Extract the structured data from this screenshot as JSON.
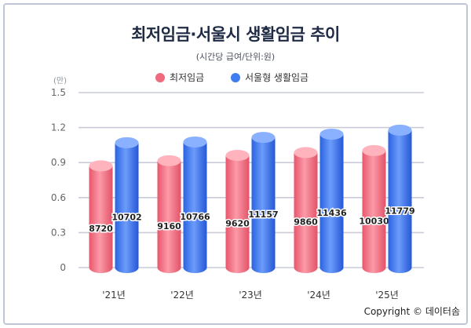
{
  "chart_data": {
    "type": "bar",
    "title": "최저임금·서울시 생활임금 추이",
    "subtitle": "(시간당 급여/단위:원)",
    "unit_label": "(만)",
    "categories": [
      "'21년",
      "'22년",
      "'23년",
      "'24년",
      "'25년"
    ],
    "series": [
      {
        "name": "최저임금",
        "color": "#f06a7e",
        "values": [
          8720,
          9160,
          9620,
          9860,
          10030
        ],
        "labels": [
          "8720",
          "9160",
          "9620",
          "9860",
          "10030"
        ]
      },
      {
        "name": "서울형 생활임금",
        "color": "#3f7df0",
        "values": [
          10702,
          10766,
          11157,
          11436,
          11779
        ],
        "labels": [
          "10702",
          "10766",
          "11157",
          "11436",
          "11779"
        ]
      }
    ],
    "y_ticks": [
      "0",
      "0.3",
      "0.6",
      "0.9",
      "1.2",
      "1.5"
    ],
    "ylim": [
      0,
      15000
    ],
    "grid": true,
    "legend_position": "top-center"
  },
  "copyright": "Copyright © 데이터솜"
}
